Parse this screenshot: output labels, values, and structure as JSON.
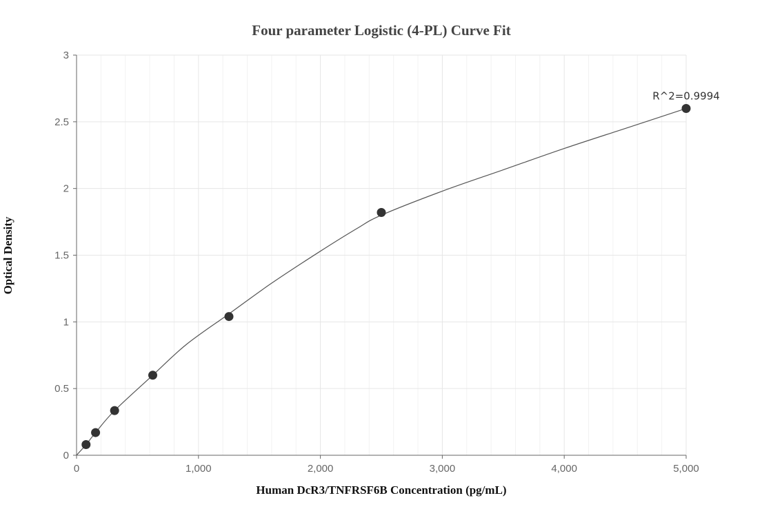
{
  "chart_data": {
    "type": "scatter",
    "title": "Four parameter Logistic (4-PL) Curve Fit",
    "xlabel": "Human DcR3/TNFRSF6B Concentration (pg/mL)",
    "ylabel": "Optical Density",
    "xlim": [
      0,
      5000
    ],
    "ylim": [
      0,
      3
    ],
    "x_ticks": [
      0,
      1000,
      2000,
      3000,
      4000,
      5000
    ],
    "x_tick_labels": [
      "0",
      "1,000",
      "2,000",
      "3,000",
      "4,000",
      "5,000"
    ],
    "y_ticks": [
      0,
      0.5,
      1,
      1.5,
      2,
      2.5,
      3
    ],
    "y_tick_labels": [
      "0",
      "0.5",
      "1",
      "1.5",
      "2",
      "2.5",
      "3"
    ],
    "grid": true,
    "series": [
      {
        "points": [
          {
            "x": 78,
            "y": 0.08
          },
          {
            "x": 156,
            "y": 0.17
          },
          {
            "x": 312,
            "y": 0.335
          },
          {
            "x": 625,
            "y": 0.6
          },
          {
            "x": 1250,
            "y": 1.04
          },
          {
            "x": 2500,
            "y": 1.82
          },
          {
            "x": 5000,
            "y": 2.6
          }
        ]
      }
    ],
    "fit_curve": [
      [
        0,
        0.0
      ],
      [
        78,
        0.08
      ],
      [
        156,
        0.17
      ],
      [
        312,
        0.335
      ],
      [
        625,
        0.6
      ],
      [
        900,
        0.83
      ],
      [
        1250,
        1.06
      ],
      [
        1600,
        1.29
      ],
      [
        2000,
        1.53
      ],
      [
        2300,
        1.7
      ],
      [
        2500,
        1.8
      ],
      [
        3000,
        1.98
      ],
      [
        3500,
        2.14
      ],
      [
        4000,
        2.3
      ],
      [
        4500,
        2.45
      ],
      [
        5000,
        2.6
      ]
    ],
    "annotation": {
      "text": "R^2=0.9994",
      "anchor_x": 5000,
      "anchor_y": 2.6
    },
    "colors": {
      "point": "#333333",
      "curve": "#555555",
      "grid": "#e6e6e6",
      "axis": "#666666"
    }
  }
}
